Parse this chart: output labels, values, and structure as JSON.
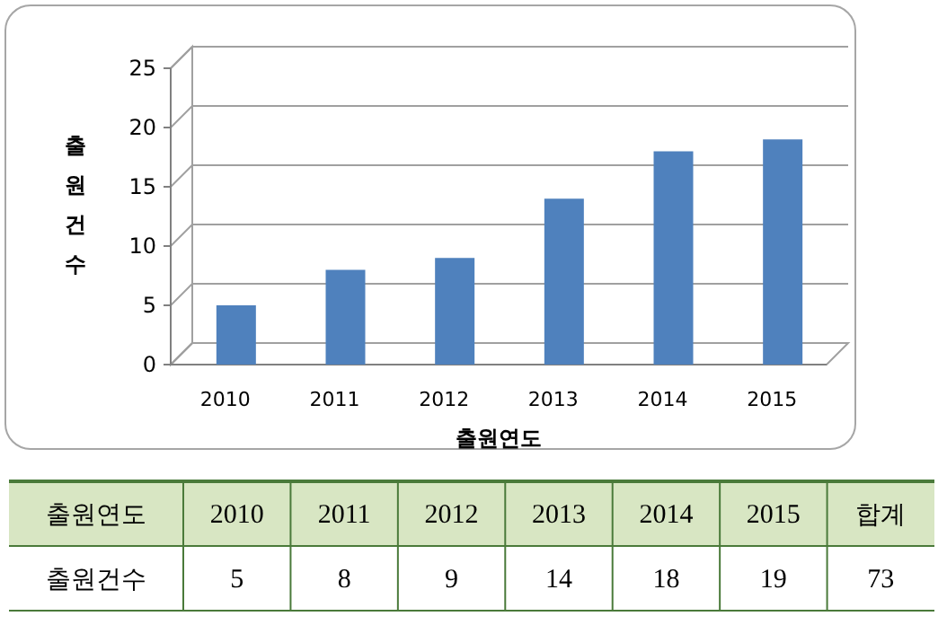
{
  "chart_data": {
    "type": "bar",
    "categories": [
      "2010",
      "2011",
      "2012",
      "2013",
      "2014",
      "2015"
    ],
    "values": [
      5,
      8,
      9,
      14,
      18,
      19
    ],
    "color": "#4f81bd",
    "xlabel": "출원연도",
    "ylabel": "출원건수",
    "ylim": [
      0,
      25
    ],
    "yticks": [
      0,
      5,
      10,
      15,
      20,
      25
    ],
    "grid": "y",
    "data_labels": true,
    "annotations": [
      "출원연도",
      "출원건수",
      "합계",
      "73"
    ]
  }
}
